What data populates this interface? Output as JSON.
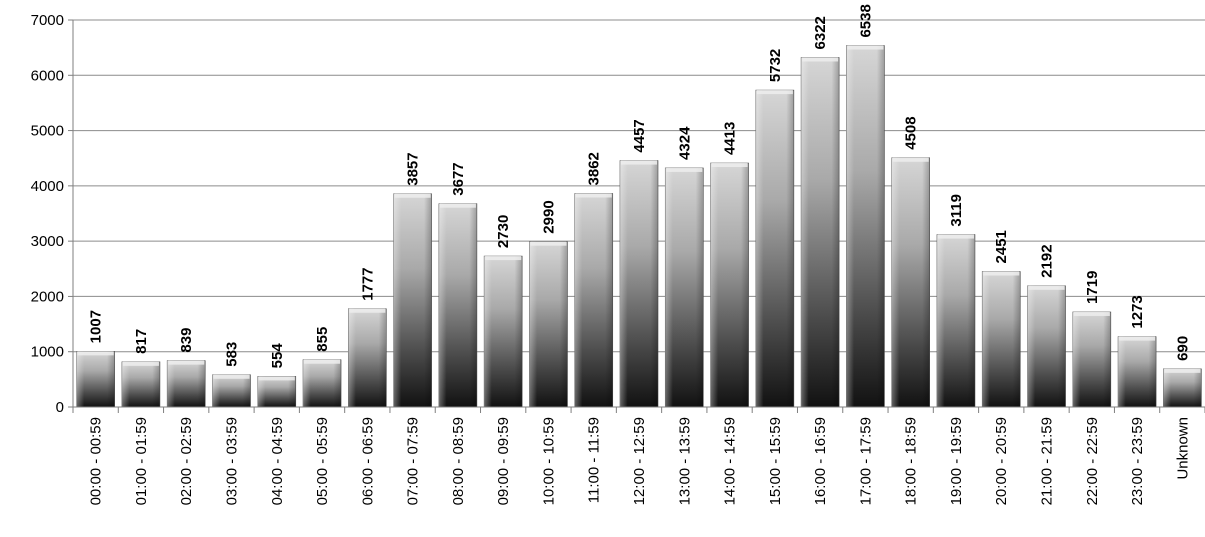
{
  "chart_data": {
    "type": "bar",
    "title": "",
    "xlabel": "",
    "ylabel": "",
    "ylim": [
      0,
      7000
    ],
    "yticks": [
      0,
      1000,
      2000,
      3000,
      4000,
      5000,
      6000,
      7000
    ],
    "grid": true,
    "legend": "none",
    "bar_style": "grey gradient with dark base",
    "categories": [
      "00:00 - 00:59",
      "01:00 - 01:59",
      "02:00 - 02:59",
      "03:00 - 03:59",
      "04:00 - 04:59",
      "05:00 - 05:59",
      "06:00 - 06:59",
      "07:00 - 07:59",
      "08:00 - 08:59",
      "09:00 - 09:59",
      "10:00 - 10:59",
      "11:00 - 11:59",
      "12:00 - 12:59",
      "13:00 - 13:59",
      "14:00 - 14:59",
      "15:00 - 15:59",
      "16:00 - 16:59",
      "17:00 - 17:59",
      "18:00 - 18:59",
      "19:00 - 19:59",
      "20:00 - 20:59",
      "21:00 - 21:59",
      "22:00 - 22:59",
      "23:00 - 23:59",
      "Unknown"
    ],
    "values": [
      1007,
      817,
      839,
      583,
      554,
      855,
      1777,
      3857,
      3677,
      2730,
      2990,
      3862,
      4457,
      4324,
      4413,
      5732,
      6322,
      6538,
      4508,
      3119,
      2451,
      2192,
      1719,
      1273,
      690
    ]
  }
}
